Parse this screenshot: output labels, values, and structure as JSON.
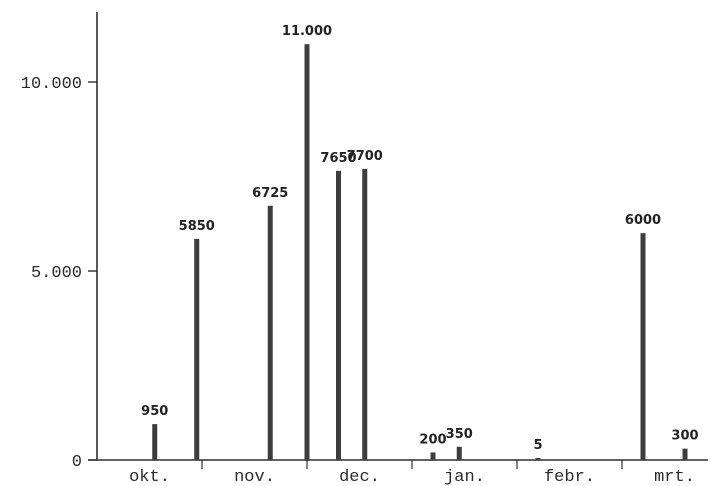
{
  "chart_data": {
    "type": "bar",
    "title": "",
    "xlabel": "",
    "ylabel": "",
    "ylim": [
      0,
      11500
    ],
    "yticks": [
      {
        "value": 0,
        "label": "0"
      },
      {
        "value": 5000,
        "label": "5.000"
      },
      {
        "value": 10000,
        "label": "10.000"
      }
    ],
    "categories": [
      "okt.",
      "nov.",
      "dec.",
      "jan.",
      "febr.",
      "mrt."
    ],
    "bars": [
      {
        "month_index": 0,
        "slot": 0.55,
        "value": 950,
        "label": "950"
      },
      {
        "month_index": 0,
        "slot": 0.95,
        "value": 5850,
        "label": "5850"
      },
      {
        "month_index": 1,
        "slot": 0.65,
        "value": 6725,
        "label": "6725"
      },
      {
        "month_index": 1,
        "slot": 1.0,
        "value": 11000,
        "label": "11.000"
      },
      {
        "month_index": 2,
        "slot": 0.3,
        "value": 7650,
        "label": "7650"
      },
      {
        "month_index": 2,
        "slot": 0.55,
        "value": 7700,
        "label": "7700"
      },
      {
        "month_index": 3,
        "slot": 0.2,
        "value": 200,
        "label": "200"
      },
      {
        "month_index": 3,
        "slot": 0.45,
        "value": 350,
        "label": "350"
      },
      {
        "month_index": 4,
        "slot": 0.2,
        "value": 5,
        "label": "5"
      },
      {
        "month_index": 5,
        "slot": 0.2,
        "value": 6000,
        "label": "6000"
      },
      {
        "month_index": 5,
        "slot": 0.6,
        "value": 300,
        "label": "300"
      }
    ],
    "colors": {
      "bar": "#3d3d3d",
      "axis": "#2f2f2f",
      "text": "#222222"
    },
    "grid": false,
    "legend": "none"
  }
}
